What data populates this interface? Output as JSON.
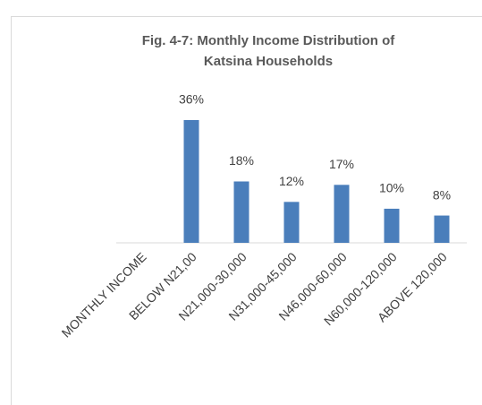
{
  "chart_data": {
    "type": "bar",
    "title": [
      "Fig. 4-7: Monthly  Income Distribution of",
      "Katsina Households"
    ],
    "categories": [
      "MONTHLY INCOME",
      "BELOW N21,00",
      "N21,000-30,000",
      "N31,000-45,000",
      "N46,000-60,000",
      "N60,000-120,000",
      "ABOVE 120,000"
    ],
    "values": [
      null,
      36,
      18,
      12,
      17,
      10,
      8
    ],
    "value_labels": [
      null,
      "36%",
      "18%",
      "12%",
      "17%",
      "10%",
      "8%"
    ],
    "color": "#4a7ebb"
  }
}
